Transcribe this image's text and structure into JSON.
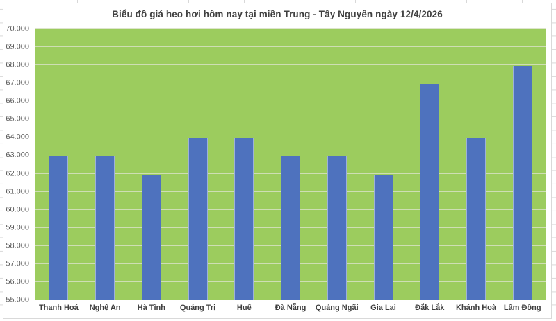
{
  "chart_data": {
    "type": "bar",
    "title": "Biểu đồ giá heo hơi hôm nay tại miền Trung - Tây Nguyên ngày 12/4/2026",
    "categories": [
      "Thanh Hoá",
      "Nghệ An",
      "Hà Tĩnh",
      "Quảng Trị",
      "Huế",
      "Đà Nẵng",
      "Quảng Ngãi",
      "Gia Lai",
      "Đắk Lắk",
      "Khánh Hoà",
      "Lâm Đồng"
    ],
    "values": [
      63000,
      63000,
      62000,
      64000,
      64000,
      63000,
      63000,
      62000,
      67000,
      64000,
      68000
    ],
    "xlabel": "",
    "ylabel": "",
    "ylim": [
      55000,
      70000
    ],
    "ytick_step": 1000,
    "ytick_labels": [
      "55.000",
      "56.000",
      "57.000",
      "58.000",
      "59.000",
      "60.000",
      "61.000",
      "62.000",
      "63.000",
      "64.000",
      "65.000",
      "66.000",
      "67.000",
      "68.000",
      "69.000",
      "70.000"
    ],
    "grid": "horizontal",
    "legend": "none",
    "colors": {
      "bar": "#4e72be",
      "plot_bg": "#9ccc5e",
      "gridline": "#d7e1c3",
      "title": "#404040",
      "ytick_text": "#595959",
      "xtick_text": "#3f3f3f",
      "border": "#d9d9d9"
    }
  }
}
